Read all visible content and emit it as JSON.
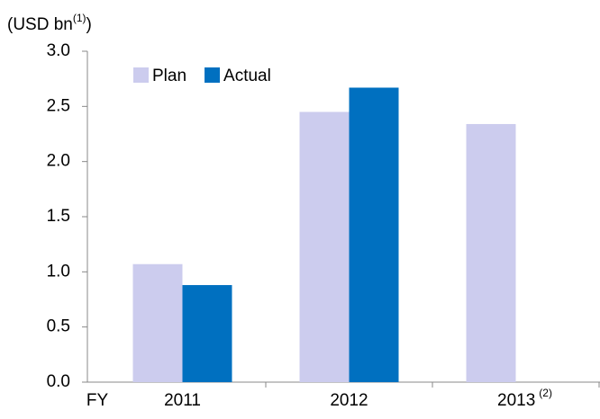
{
  "chart_data": {
    "type": "bar",
    "y_label": [
      "(USD bn",
      "(1)",
      ")"
    ],
    "x_label": "FY",
    "categories": [
      "2011",
      "2012",
      "2013"
    ],
    "category_notes": [
      null,
      null,
      "(2)"
    ],
    "series": [
      {
        "name": "Plan",
        "color": "#ccccee",
        "values": [
          1.07,
          2.45,
          2.34
        ]
      },
      {
        "name": "Actual",
        "color": "#0070c0",
        "values": [
          0.88,
          2.67,
          null
        ]
      }
    ],
    "ylim": [
      0,
      3
    ],
    "yticks": [
      {
        "value": 0,
        "label": "0.0"
      },
      {
        "value": 0.5,
        "label": "0.5"
      },
      {
        "value": 1,
        "label": "1.0"
      },
      {
        "value": 1.5,
        "label": "1.5"
      },
      {
        "value": 2,
        "label": "2.0"
      },
      {
        "value": 2.5,
        "label": "2.5"
      },
      {
        "value": 3,
        "label": "3.0"
      }
    ],
    "grid": false,
    "legend": "top-left"
  }
}
